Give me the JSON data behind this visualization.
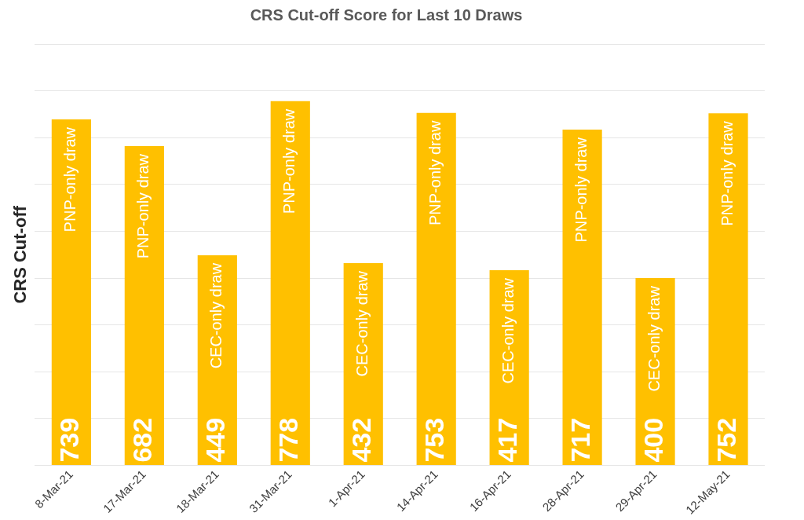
{
  "chart_data": {
    "type": "bar",
    "title": "CRS Cut-off Score for Last 10 Draws",
    "ylabel": "CRS Cut-off",
    "categories": [
      "8-Mar-21",
      "17-Mar-21",
      "18-Mar-21",
      "31-Mar-21",
      "1-Apr-21",
      "14-Apr-21",
      "16-Apr-21",
      "28-Apr-21",
      "29-Apr-21",
      "12-May-21"
    ],
    "values": [
      739,
      682,
      449,
      778,
      432,
      753,
      417,
      717,
      400,
      752
    ],
    "color": "#ffc000",
    "data_labels": true,
    "ylim": [
      0,
      900
    ],
    "yticks": [
      {
        "value": 0,
        "label": null
      },
      {
        "value": 100,
        "label": null
      },
      {
        "value": 200,
        "label": null
      },
      {
        "value": 300,
        "label": null
      },
      {
        "value": 400,
        "label": null
      },
      {
        "value": 500,
        "label": null
      },
      {
        "value": 600,
        "label": null
      },
      {
        "value": 700,
        "label": null
      },
      {
        "value": 800,
        "label": null
      },
      {
        "value": 900,
        "label": null
      }
    ],
    "grid": "y",
    "tick_labels": "x",
    "legend": false,
    "annotations": [
      {
        "text": "PNP-only draw",
        "x": "8-Mar-21",
        "y": 739
      },
      {
        "text": "PNP-only draw",
        "x": "17-Mar-21",
        "y": 682
      },
      {
        "text": "CEC-only draw",
        "x": "18-Mar-21",
        "y": 449
      },
      {
        "text": "PNP-only draw",
        "x": "31-Mar-21",
        "y": 778
      },
      {
        "text": "CEC-only draw",
        "x": "1-Apr-21",
        "y": 432
      },
      {
        "text": "PNP-only draw",
        "x": "14-Apr-21",
        "y": 753
      },
      {
        "text": "CEC-only draw",
        "x": "16-Apr-21",
        "y": 417
      },
      {
        "text": "PNP-only draw",
        "x": "28-Apr-21",
        "y": 717
      },
      {
        "text": "CEC-only draw",
        "x": "29-Apr-21",
        "y": 400
      },
      {
        "text": "PNP-only draw",
        "x": "12-May-21",
        "y": 752
      }
    ]
  }
}
